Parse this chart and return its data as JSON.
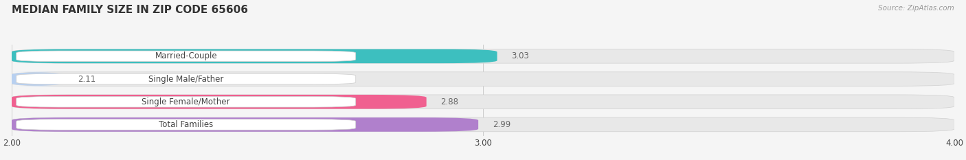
{
  "title": "MEDIAN FAMILY SIZE IN ZIP CODE 65606",
  "source": "Source: ZipAtlas.com",
  "categories": [
    "Married-Couple",
    "Single Male/Father",
    "Single Female/Mother",
    "Total Families"
  ],
  "values": [
    3.03,
    2.11,
    2.88,
    2.99
  ],
  "bar_colors": [
    "#3dbfbf",
    "#b8d0f0",
    "#f06090",
    "#b080cc"
  ],
  "bar_bg_color": "#e8e8e8",
  "xlim": [
    2.0,
    4.0
  ],
  "xticks": [
    2.0,
    3.0,
    4.0
  ],
  "bar_height": 0.62,
  "fig_bg_color": "#f5f5f5",
  "label_color": "#444444",
  "value_color": "#666666",
  "title_color": "#333333",
  "source_color": "#999999",
  "title_fontsize": 11,
  "label_fontsize": 8.5,
  "value_fontsize": 8.5,
  "tick_fontsize": 8.5,
  "label_pill_color": "#ffffff",
  "label_pill_edge_color": "#dddddd"
}
